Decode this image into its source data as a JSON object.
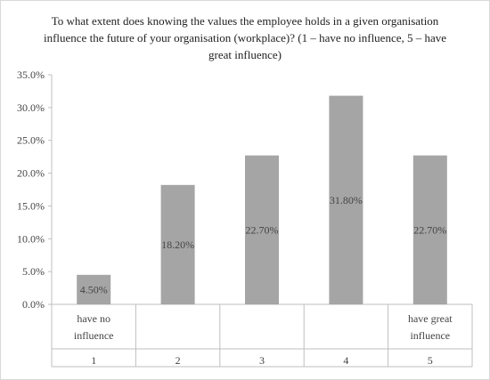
{
  "chart_data": {
    "type": "bar",
    "title": "To what extent does knowing the values the employee holds in a given organisation influence the future of your organisation (workplace)? (1 – have no influence, 5 – have great influence)",
    "categories": [
      "1",
      "2",
      "3",
      "4",
      "5"
    ],
    "category_annotations": [
      "have no influence",
      "",
      "",
      "",
      "have great influence"
    ],
    "values": [
      4.5,
      18.2,
      22.7,
      31.8,
      22.7
    ],
    "data_labels": [
      "4.50%",
      "18.20%",
      "22.70%",
      "31.80%",
      "22.70%"
    ],
    "y_ticks": [
      "0.0%",
      "5.0%",
      "10.0%",
      "15.0%",
      "20.0%",
      "25.0%",
      "30.0%",
      "35.0%"
    ],
    "ylim": [
      0,
      35
    ],
    "xlabel": "",
    "ylabel": "",
    "grid": false,
    "bar_color": "#a5a5a5",
    "axis_color": "#bfbfbf"
  }
}
